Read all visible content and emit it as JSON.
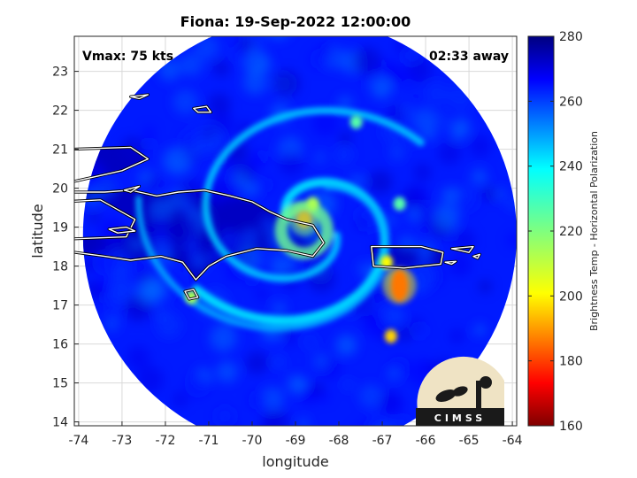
{
  "chart_data": {
    "type": "heatmap",
    "title": "Fiona: 19-Sep-2022 12:00:00",
    "xlabel": "longitude",
    "ylabel": "latitude",
    "xlim": [
      -74.1,
      -63.9
    ],
    "ylim": [
      13.9,
      23.9
    ],
    "x_ticks": [
      -74,
      -73,
      -72,
      -71,
      -70,
      -69,
      -68,
      -67,
      -66,
      -65,
      -64
    ],
    "y_ticks": [
      14,
      15,
      16,
      17,
      18,
      19,
      20,
      21,
      22,
      23
    ],
    "x_tick_labels": [
      "-74",
      "-73",
      "-72",
      "-71",
      "-70",
      "-69",
      "-68",
      "-67",
      "-66",
      "-65",
      "-64"
    ],
    "y_tick_labels": [
      "14",
      "15",
      "16",
      "17",
      "18",
      "19",
      "20",
      "21",
      "22",
      "23"
    ],
    "grid": true,
    "annotations": {
      "left": "Vmax: 75 kts",
      "right": "02:33 away"
    },
    "colorbar": {
      "label": "Brightness Temp - Horizontal Polarization",
      "range": [
        160,
        280
      ],
      "ticks": [
        160,
        180,
        200,
        220,
        240,
        260,
        280
      ],
      "tick_labels": [
        "160",
        "180",
        "200",
        "220",
        "240",
        "260",
        "280"
      ],
      "colormap": "jet"
    },
    "storm_center": {
      "lon": -68.8,
      "lat": 19.1,
      "min_temp": 190
    },
    "features": [
      {
        "lon": -66.6,
        "lat": 17.5,
        "temp": 175
      },
      {
        "lon": -68.8,
        "lat": 19.2,
        "temp": 190
      },
      {
        "lon": -68.6,
        "lat": 19.6,
        "temp": 215
      },
      {
        "lon": -66.8,
        "lat": 16.2,
        "temp": 200
      },
      {
        "lon": -66.9,
        "lat": 18.1,
        "temp": 205
      },
      {
        "lon": -71.4,
        "lat": 17.2,
        "temp": 215
      },
      {
        "lon": -67.6,
        "lat": 21.7,
        "temp": 225
      },
      {
        "lon": -66.6,
        "lat": 19.6,
        "temp": 225
      }
    ],
    "swath_center": {
      "lon": -68.9,
      "lat": 18.8
    },
    "swath_radius_deg": 5.0,
    "background_temp": 262,
    "land_temp": 272
  },
  "logo": {
    "text": "CIMSS"
  },
  "colors": {
    "land_outline": "#ffffff",
    "coast_edge": "#000000",
    "grid": "#d9d9d9"
  }
}
